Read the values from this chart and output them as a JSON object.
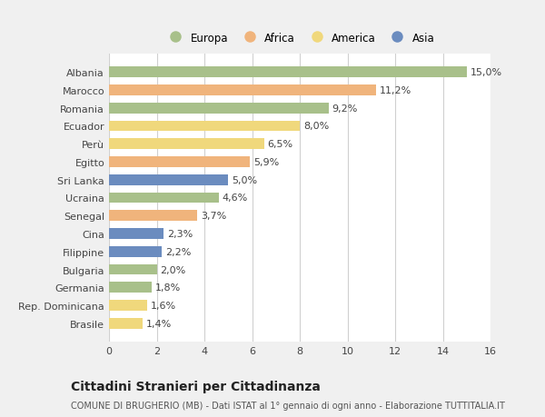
{
  "categories": [
    "Albania",
    "Marocco",
    "Romania",
    "Ecuador",
    "Perù",
    "Egitto",
    "Sri Lanka",
    "Ucraina",
    "Senegal",
    "Cina",
    "Filippine",
    "Bulgaria",
    "Germania",
    "Rep. Dominicana",
    "Brasile"
  ],
  "values": [
    15.0,
    11.2,
    9.2,
    8.0,
    6.5,
    5.9,
    5.0,
    4.6,
    3.7,
    2.3,
    2.2,
    2.0,
    1.8,
    1.6,
    1.4
  ],
  "labels": [
    "15,0%",
    "11,2%",
    "9,2%",
    "8,0%",
    "6,5%",
    "5,9%",
    "5,0%",
    "4,6%",
    "3,7%",
    "2,3%",
    "2,2%",
    "2,0%",
    "1,8%",
    "1,6%",
    "1,4%"
  ],
  "continents": [
    "Europa",
    "Africa",
    "Europa",
    "America",
    "America",
    "Africa",
    "Asia",
    "Europa",
    "Africa",
    "Asia",
    "Asia",
    "Europa",
    "Europa",
    "America",
    "America"
  ],
  "colors": {
    "Europa": "#a8c08a",
    "Africa": "#f0b47c",
    "America": "#f0d87c",
    "Asia": "#6b8cbf"
  },
  "legend_order": [
    "Europa",
    "Africa",
    "America",
    "Asia"
  ],
  "xlim": [
    0,
    16
  ],
  "xticks": [
    0,
    2,
    4,
    6,
    8,
    10,
    12,
    14,
    16
  ],
  "title": "Cittadini Stranieri per Cittadinanza",
  "subtitle": "COMUNE DI BRUGHERIO (MB) - Dati ISTAT al 1° gennaio di ogni anno - Elaborazione TUTTITALIA.IT",
  "bg_color": "#f0f0f0",
  "plot_bg_color": "#ffffff",
  "grid_color": "#d0d0d0",
  "bar_label_fontsize": 8,
  "ytick_fontsize": 8,
  "xtick_fontsize": 8,
  "title_fontsize": 10,
  "subtitle_fontsize": 7,
  "legend_fontsize": 8.5
}
